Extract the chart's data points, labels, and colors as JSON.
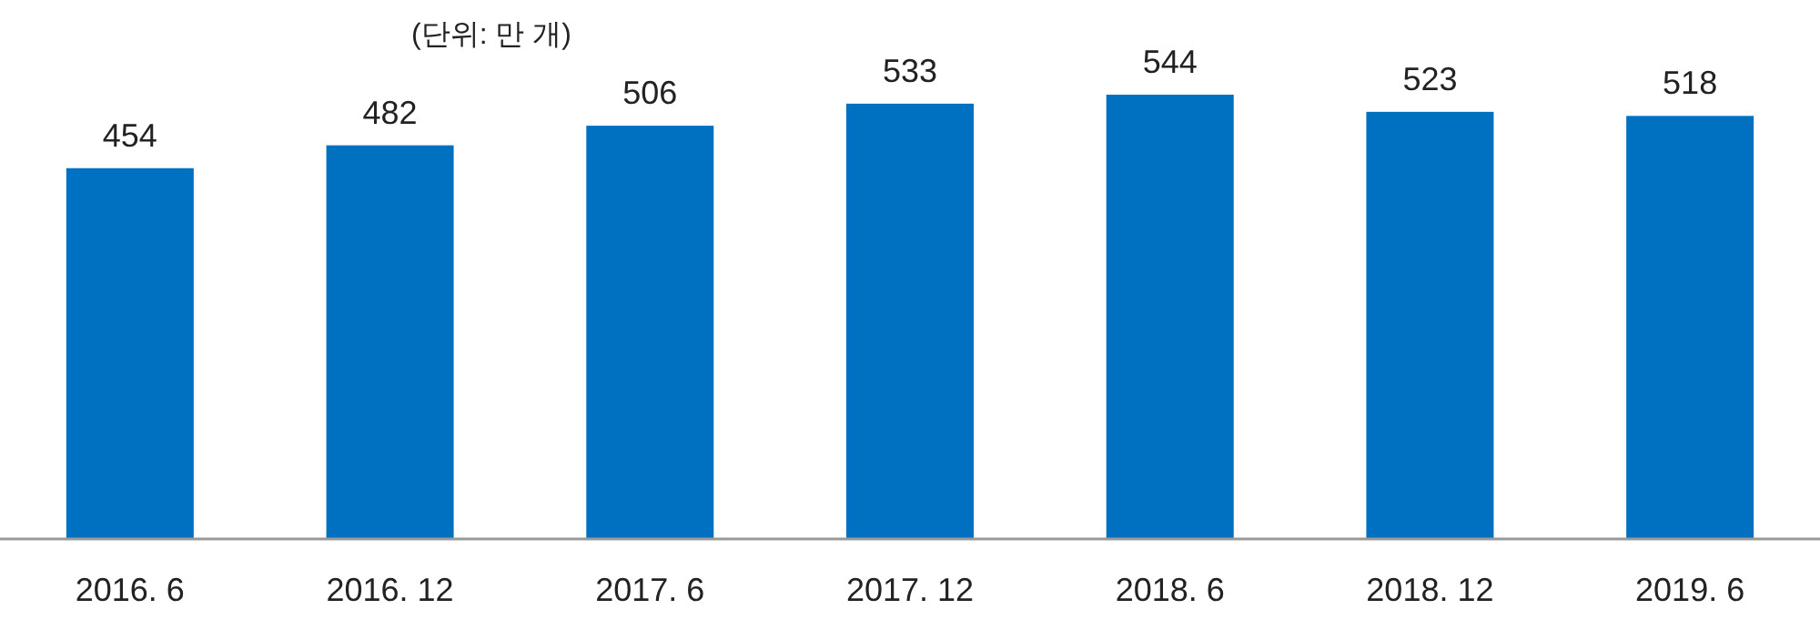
{
  "chart_data": {
    "type": "bar",
    "annotations": [
      "(단위: 만 개)"
    ],
    "categories": [
      "2016. 6",
      "2016. 12",
      "2017. 6",
      "2017. 12",
      "2018. 6",
      "2018. 12",
      "2019. 6"
    ],
    "values": [
      454,
      482,
      506,
      533,
      544,
      523,
      518
    ],
    "color": "#0070c0",
    "data_labels": true
  }
}
